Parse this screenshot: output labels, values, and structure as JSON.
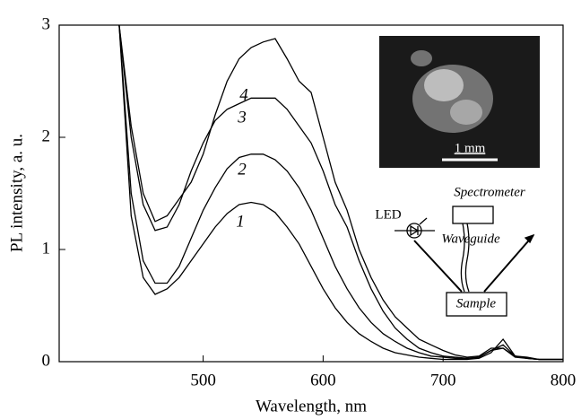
{
  "chart_data": {
    "type": "line",
    "xlabel": "Wavelength, nm",
    "ylabel": "PL intensity, a. u.",
    "x": [
      430,
      440,
      450,
      460,
      470,
      480,
      490,
      500,
      510,
      520,
      530,
      540,
      550,
      560,
      570,
      580,
      590,
      600,
      610,
      620,
      630,
      640,
      650,
      660,
      670,
      680,
      690,
      700,
      710,
      720,
      730,
      740,
      750,
      760,
      770,
      780,
      790,
      800
    ],
    "series": [
      {
        "name": "1",
        "color": "#000000",
        "values": [
          3.0,
          1.3,
          0.75,
          0.6,
          0.65,
          0.75,
          0.9,
          1.05,
          1.2,
          1.32,
          1.4,
          1.42,
          1.4,
          1.33,
          1.2,
          1.05,
          0.85,
          0.65,
          0.48,
          0.35,
          0.25,
          0.18,
          0.12,
          0.08,
          0.06,
          0.04,
          0.03,
          0.02,
          0.02,
          0.02,
          0.03,
          0.08,
          0.2,
          0.05,
          0.03,
          0.02,
          0.02,
          0.02
        ]
      },
      {
        "name": "2",
        "color": "#000000",
        "values": [
          3.0,
          1.5,
          0.9,
          0.7,
          0.7,
          0.85,
          1.1,
          1.35,
          1.55,
          1.72,
          1.82,
          1.85,
          1.85,
          1.8,
          1.7,
          1.55,
          1.35,
          1.1,
          0.85,
          0.65,
          0.48,
          0.35,
          0.25,
          0.18,
          0.12,
          0.08,
          0.05,
          0.04,
          0.03,
          0.03,
          0.04,
          0.1,
          0.15,
          0.05,
          0.03,
          0.02,
          0.02,
          0.02
        ]
      },
      {
        "name": "3",
        "color": "#000000",
        "values": [
          3.0,
          2.0,
          1.4,
          1.17,
          1.2,
          1.4,
          1.7,
          1.95,
          2.15,
          2.25,
          2.3,
          2.35,
          2.35,
          2.35,
          2.25,
          2.1,
          1.95,
          1.7,
          1.4,
          1.2,
          0.9,
          0.65,
          0.45,
          0.3,
          0.2,
          0.12,
          0.08,
          0.05,
          0.04,
          0.03,
          0.04,
          0.1,
          0.12,
          0.04,
          0.03,
          0.02,
          0.02,
          0.02
        ]
      },
      {
        "name": "4",
        "color": "#000000",
        "values": [
          3.0,
          2.1,
          1.5,
          1.25,
          1.3,
          1.45,
          1.6,
          1.85,
          2.2,
          2.5,
          2.7,
          2.8,
          2.85,
          2.88,
          2.7,
          2.5,
          2.4,
          2.0,
          1.6,
          1.35,
          1.0,
          0.75,
          0.55,
          0.4,
          0.3,
          0.2,
          0.15,
          0.1,
          0.06,
          0.04,
          0.05,
          0.12,
          0.12,
          0.05,
          0.04,
          0.02,
          0.02,
          0.02
        ]
      }
    ],
    "xlim": [
      380,
      800
    ],
    "xticks": [
      500,
      600,
      700,
      800
    ],
    "ylim": [
      0,
      3
    ],
    "yticks": [
      0,
      1,
      2,
      3
    ],
    "grid": false,
    "inset": {
      "scale_bar": "1 mm"
    },
    "schematic": {
      "spectrometer": "Spectrometer",
      "led": "LED",
      "waveguide": "Waveguide",
      "sample": "Sample"
    }
  }
}
